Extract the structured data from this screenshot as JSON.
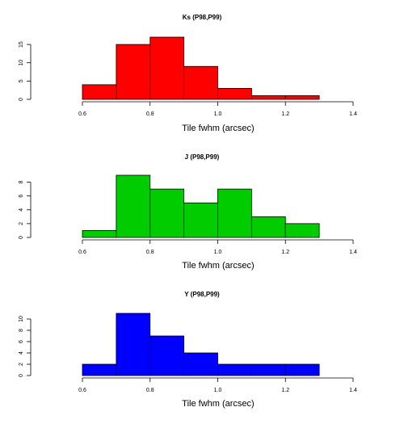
{
  "chart_data": [
    {
      "type": "bar",
      "title": "Ks (P98,P99)",
      "xlabel": "Tile fwhm (arcsec)",
      "ylabel": "",
      "color": "#ff0000",
      "bins": [
        [
          0.6,
          0.7
        ],
        [
          0.7,
          0.8
        ],
        [
          0.8,
          0.9
        ],
        [
          0.9,
          1.0
        ],
        [
          1.0,
          1.1
        ],
        [
          1.1,
          1.2
        ],
        [
          1.2,
          1.3
        ]
      ],
      "values": [
        4,
        15,
        17,
        9,
        3,
        1,
        1
      ],
      "xlim": [
        0.6,
        1.4
      ],
      "ylim": [
        0,
        17
      ],
      "xticks": [
        0.6,
        0.8,
        1.0,
        1.2,
        1.4
      ],
      "xtick_labels": [
        "0.6",
        "0.8",
        "1.0",
        "1.2",
        "1.4"
      ],
      "yticks": [
        0,
        5,
        10,
        15
      ],
      "ytick_labels": [
        "0",
        "5",
        "10",
        "15"
      ]
    },
    {
      "type": "bar",
      "title": "J (P98,P99)",
      "xlabel": "Tile fwhm (arcsec)",
      "ylabel": "",
      "color": "#00cc00",
      "bins": [
        [
          0.6,
          0.7
        ],
        [
          0.7,
          0.8
        ],
        [
          0.8,
          0.9
        ],
        [
          0.9,
          1.0
        ],
        [
          1.0,
          1.1
        ],
        [
          1.1,
          1.2
        ],
        [
          1.2,
          1.3
        ]
      ],
      "values": [
        1,
        9,
        7,
        5,
        7,
        3,
        2
      ],
      "xlim": [
        0.6,
        1.4
      ],
      "ylim": [
        0,
        9
      ],
      "xticks": [
        0.6,
        0.8,
        1.0,
        1.2,
        1.4
      ],
      "xtick_labels": [
        "0.6",
        "0.8",
        "1.0",
        "1.2",
        "1.4"
      ],
      "yticks": [
        0,
        2,
        4,
        6,
        8
      ],
      "ytick_labels": [
        "0",
        "2",
        "4",
        "6",
        "8"
      ]
    },
    {
      "type": "bar",
      "title": "Y (P98,P99)",
      "xlabel": "Tile fwhm (arcsec)",
      "ylabel": "",
      "color": "#0000ff",
      "bins": [
        [
          0.6,
          0.7
        ],
        [
          0.7,
          0.8
        ],
        [
          0.8,
          0.9
        ],
        [
          0.9,
          1.0
        ],
        [
          1.0,
          1.1
        ],
        [
          1.1,
          1.2
        ],
        [
          1.2,
          1.3
        ]
      ],
      "values": [
        2,
        11,
        7,
        4,
        2,
        2,
        2
      ],
      "xlim": [
        0.6,
        1.4
      ],
      "ylim": [
        0,
        11
      ],
      "xticks": [
        0.6,
        0.8,
        1.0,
        1.2,
        1.4
      ],
      "xtick_labels": [
        "0.6",
        "0.8",
        "1.0",
        "1.2",
        "1.4"
      ],
      "yticks": [
        0,
        2,
        4,
        6,
        8,
        10
      ],
      "ytick_labels": [
        "0",
        "2",
        "4",
        "6",
        "8",
        "10"
      ]
    }
  ]
}
